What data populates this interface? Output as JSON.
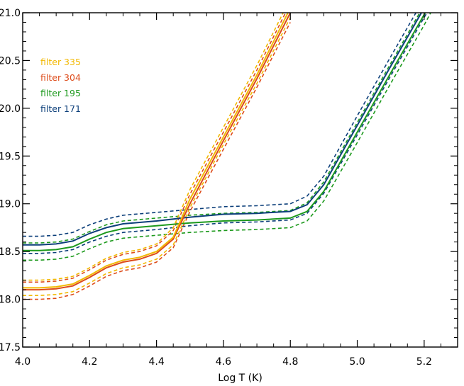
{
  "chart_data": {
    "type": "line",
    "title": "",
    "xlabel": "Log T (K)",
    "ylabel": "",
    "xlim": [
      4.0,
      5.3
    ],
    "ylim": [
      17.5,
      21.0
    ],
    "xticks": [
      "4.0",
      "4.2",
      "4.4",
      "4.6",
      "4.8",
      "5.0",
      "5.2"
    ],
    "yticks": [
      "17.5",
      "18.0",
      "18.5",
      "19.0",
      "19.5",
      "20.0",
      "20.5",
      "21.0"
    ],
    "legend_placement": "top-left",
    "grid": false,
    "series": [
      {
        "name": "filter 335",
        "color": "#f2b800",
        "x": [
          4.0,
          4.05,
          4.1,
          4.15,
          4.2,
          4.25,
          4.3,
          4.35,
          4.4,
          4.45,
          4.5,
          4.6,
          4.7,
          4.8
        ],
        "y": [
          18.12,
          18.12,
          18.13,
          18.16,
          18.25,
          18.35,
          18.41,
          18.44,
          18.5,
          18.65,
          19.05,
          19.7,
          20.35,
          21.05
        ],
        "band_upper": [
          18.2,
          18.2,
          18.21,
          18.24,
          18.33,
          18.43,
          18.49,
          18.52,
          18.58,
          18.75,
          19.15,
          19.8,
          20.45,
          21.15
        ],
        "band_lower": [
          18.04,
          18.04,
          18.05,
          18.08,
          18.17,
          18.27,
          18.33,
          18.36,
          18.42,
          18.57,
          18.96,
          19.62,
          20.26,
          20.95
        ]
      },
      {
        "name": "filter 304",
        "color": "#dd4b1a",
        "x": [
          4.0,
          4.05,
          4.1,
          4.15,
          4.2,
          4.25,
          4.3,
          4.35,
          4.4,
          4.45,
          4.5,
          4.6,
          4.7,
          4.8
        ],
        "y": [
          18.1,
          18.1,
          18.11,
          18.14,
          18.23,
          18.33,
          18.39,
          18.42,
          18.48,
          18.63,
          19.0,
          19.66,
          20.31,
          21.0
        ],
        "band_upper": [
          18.18,
          18.18,
          18.19,
          18.22,
          18.31,
          18.41,
          18.47,
          18.5,
          18.56,
          18.72,
          19.1,
          19.75,
          20.4,
          21.1
        ],
        "band_lower": [
          18.0,
          18.0,
          18.01,
          18.05,
          18.14,
          18.24,
          18.3,
          18.33,
          18.39,
          18.54,
          18.92,
          19.57,
          20.22,
          20.9
        ]
      },
      {
        "name": "filter 195",
        "color": "#1d9a1d",
        "x": [
          4.0,
          4.05,
          4.1,
          4.15,
          4.2,
          4.25,
          4.3,
          4.4,
          4.5,
          4.6,
          4.7,
          4.8,
          4.85,
          4.9,
          5.0,
          5.1,
          5.2,
          5.25
        ],
        "y": [
          18.51,
          18.51,
          18.52,
          18.55,
          18.63,
          18.7,
          18.74,
          18.77,
          18.8,
          18.82,
          18.83,
          18.85,
          18.92,
          19.13,
          19.75,
          20.37,
          20.98,
          21.3
        ],
        "band_upper": [
          18.59,
          18.59,
          18.6,
          18.63,
          18.71,
          18.78,
          18.82,
          18.85,
          18.88,
          18.9,
          18.91,
          18.93,
          19.01,
          19.23,
          19.85,
          20.47,
          21.08,
          21.4
        ],
        "band_lower": [
          18.41,
          18.41,
          18.42,
          18.45,
          18.53,
          18.6,
          18.64,
          18.67,
          18.7,
          18.72,
          18.73,
          18.75,
          18.82,
          19.03,
          19.64,
          20.26,
          20.87,
          21.2
        ]
      },
      {
        "name": "filter 171",
        "color": "#0c3f7a",
        "x": [
          4.0,
          4.05,
          4.1,
          4.15,
          4.2,
          4.25,
          4.3,
          4.4,
          4.5,
          4.6,
          4.7,
          4.8,
          4.85,
          4.9,
          5.0,
          5.1,
          5.2,
          5.25
        ],
        "y": [
          18.57,
          18.57,
          18.58,
          18.61,
          18.69,
          18.75,
          18.79,
          18.82,
          18.86,
          18.89,
          18.9,
          18.92,
          18.99,
          19.2,
          19.82,
          20.44,
          21.05,
          21.35
        ],
        "band_upper": [
          18.66,
          18.66,
          18.67,
          18.7,
          18.78,
          18.84,
          18.88,
          18.91,
          18.94,
          18.97,
          18.98,
          19.0,
          19.08,
          19.29,
          19.92,
          20.54,
          21.15,
          21.45
        ],
        "band_lower": [
          18.48,
          18.48,
          18.49,
          18.52,
          18.6,
          18.66,
          18.7,
          18.73,
          18.77,
          18.8,
          18.81,
          18.83,
          18.9,
          19.11,
          19.72,
          20.34,
          20.95,
          21.25
        ]
      }
    ]
  }
}
